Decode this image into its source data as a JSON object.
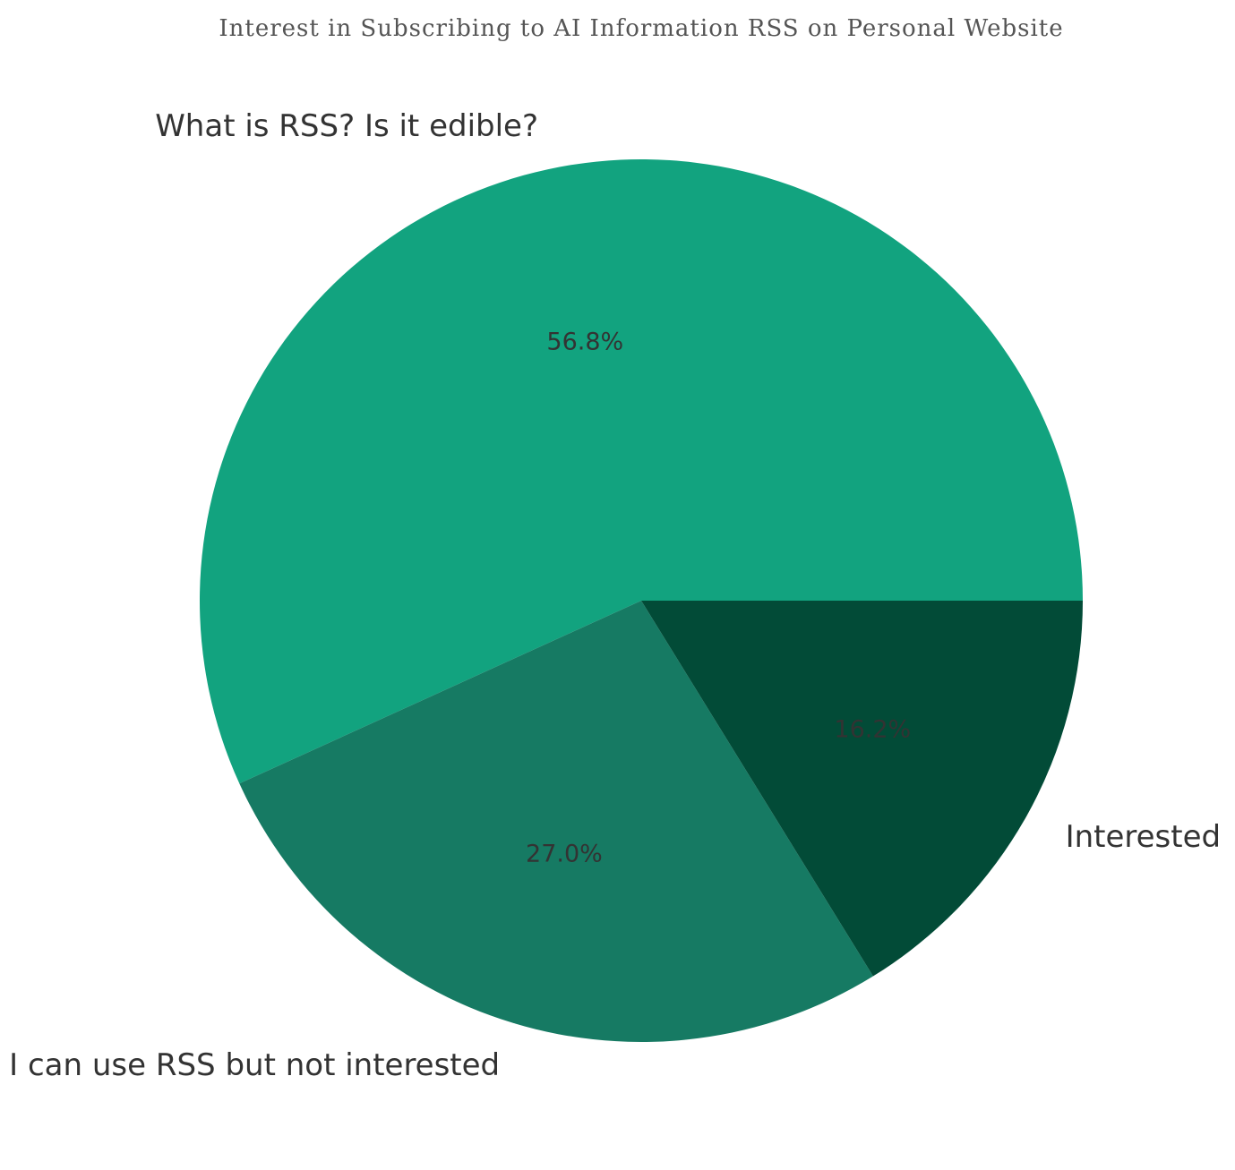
{
  "chart_data": {
    "type": "pie",
    "title": "Interest in Subscribing to AI Information RSS on Personal Website",
    "slices": [
      {
        "label": "What is RSS? Is it edible?",
        "value": 56.8,
        "pct_label": "56.8%",
        "color": "#12a37f"
      },
      {
        "label": "I can use RSS but not interested",
        "value": 27.0,
        "pct_label": "27.0%",
        "color": "#167a63"
      },
      {
        "label": "Interested",
        "value": 16.2,
        "pct_label": "16.2%",
        "color": "#024b37"
      }
    ],
    "start_angle_deg": 0,
    "direction": "counterclockwise",
    "legend": "none"
  }
}
